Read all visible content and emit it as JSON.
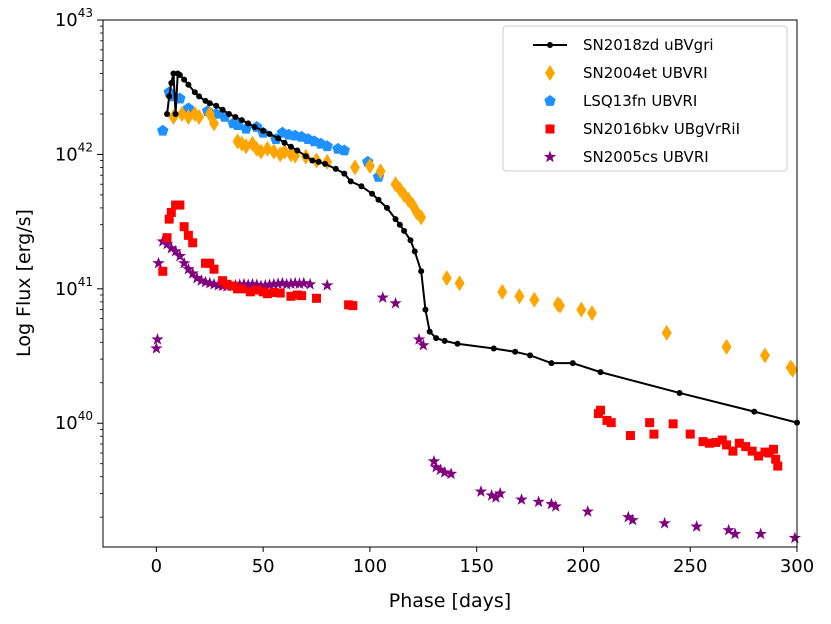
{
  "chart_data": {
    "type": "scatter",
    "title": "",
    "xlabel": "Phase [days]",
    "ylabel": "Log Flux [erg/s]",
    "xlim": [
      -25,
      300
    ],
    "ylim": [
      1.2e+39,
      1e+43
    ],
    "yscale": "log",
    "x_ticks": [
      0,
      50,
      100,
      150,
      200,
      250,
      300
    ],
    "y_ticks": [
      {
        "value": 1e+40,
        "base": "10",
        "exp": "40"
      },
      {
        "value": 1e+41,
        "base": "10",
        "exp": "41"
      },
      {
        "value": 1e+42,
        "base": "10",
        "exp": "42"
      },
      {
        "value": 1e+43,
        "base": "10",
        "exp": "43"
      }
    ],
    "legend_position": "top-right",
    "series": [
      {
        "name": "SN2018zd uBVgri",
        "color": "#000000",
        "marker": "dot-line",
        "points": [
          [
            5,
            2e+42
          ],
          [
            6,
            2.7e+42
          ],
          [
            7,
            3.4e+42
          ],
          [
            8,
            4e+42
          ],
          [
            9,
            2e+42
          ],
          [
            10,
            4e+42
          ],
          [
            11,
            3.9e+42
          ],
          [
            13,
            3.6e+42
          ],
          [
            15,
            3.3e+42
          ],
          [
            18,
            2.9e+42
          ],
          [
            20,
            2.7e+42
          ],
          [
            23,
            2.5e+42
          ],
          [
            25,
            2.4e+42
          ],
          [
            28,
            2.3e+42
          ],
          [
            31,
            2.15e+42
          ],
          [
            34,
            2e+42
          ],
          [
            37,
            1.9e+42
          ],
          [
            40,
            1.8e+42
          ],
          [
            43,
            1.7e+42
          ],
          [
            46,
            1.6e+42
          ],
          [
            50,
            1.5e+42
          ],
          [
            53,
            1.42e+42
          ],
          [
            57,
            1.32e+42
          ],
          [
            60,
            1.22e+42
          ],
          [
            63,
            1.14e+42
          ],
          [
            66,
            1.07e+42
          ],
          [
            70,
            9.7e+41
          ],
          [
            73,
            9e+41
          ],
          [
            76,
            8.8e+41
          ],
          [
            79,
            8.5e+41
          ],
          [
            84,
            7.8e+41
          ],
          [
            88,
            7.2e+41
          ],
          [
            91,
            6.3e+41
          ],
          [
            96,
            5.8e+41
          ],
          [
            101,
            5.1e+41
          ],
          [
            104,
            4.6e+41
          ],
          [
            108,
            4e+41
          ],
          [
            112,
            3.3e+41
          ],
          [
            114,
            3e+41
          ],
          [
            116,
            2.7e+41
          ],
          [
            119,
            2.3e+41
          ],
          [
            121,
            1.9e+41
          ],
          [
            124,
            1.35e+41
          ],
          [
            126,
            7e+40
          ],
          [
            128,
            4.8e+40
          ],
          [
            131,
            4.3e+40
          ],
          [
            135,
            4.1e+40
          ],
          [
            141,
            3.9e+40
          ],
          [
            158,
            3.6e+40
          ],
          [
            168,
            3.4e+40
          ],
          [
            175,
            3.2e+40
          ],
          [
            185,
            2.8e+40
          ],
          [
            195,
            2.8e+40
          ],
          [
            208,
            2.4e+40
          ],
          [
            245,
            1.68e+40
          ],
          [
            280,
            1.22e+40
          ],
          [
            300,
            1.01e+40
          ]
        ]
      },
      {
        "name": "SN2004et UBVRI",
        "color": "#ffa500",
        "marker": "diamond",
        "points": [
          [
            8,
            1.9e+42
          ],
          [
            12,
            2e+42
          ],
          [
            15,
            1.9e+42
          ],
          [
            18,
            2e+42
          ],
          [
            20,
            1.9e+42
          ],
          [
            25,
            2e+42
          ],
          [
            27,
            1.7e+42
          ],
          [
            38,
            1.25e+42
          ],
          [
            40,
            1.2e+42
          ],
          [
            42,
            1.15e+42
          ],
          [
            45,
            1.2e+42
          ],
          [
            47,
            1.1e+42
          ],
          [
            49,
            1.05e+42
          ],
          [
            52,
            1.1e+42
          ],
          [
            55,
            1.05e+42
          ],
          [
            58,
            1e+42
          ],
          [
            60,
            1.05e+42
          ],
          [
            63,
            1e+42
          ],
          [
            65,
            9.8e+41
          ],
          [
            70,
            9.6e+41
          ],
          [
            75,
            9e+41
          ],
          [
            80,
            8.8e+41
          ],
          [
            93,
            8e+41
          ],
          [
            100,
            8.2e+41
          ],
          [
            105,
            7.5e+41
          ],
          [
            112,
            6e+41
          ],
          [
            114,
            5.5e+41
          ],
          [
            116,
            5e+41
          ],
          [
            118,
            4.6e+41
          ],
          [
            120,
            4.2e+41
          ],
          [
            122,
            3.7e+41
          ],
          [
            124,
            3.4e+41
          ],
          [
            136,
            1.2e+41
          ],
          [
            142,
            1.1e+41
          ],
          [
            162,
            9.5e+40
          ],
          [
            170,
            8.8e+40
          ],
          [
            177,
            8.3e+40
          ],
          [
            188,
            7.7e+40
          ],
          [
            189,
            7.5e+40
          ],
          [
            199,
            7e+40
          ],
          [
            204,
            6.6e+40
          ],
          [
            239,
            4.7e+40
          ],
          [
            267,
            3.7e+40
          ],
          [
            285,
            3.2e+40
          ],
          [
            297,
            2.6e+40
          ],
          [
            298,
            2.5e+40
          ]
        ]
      },
      {
        "name": "LSQ13fn UBVRI",
        "color": "#1e90ff",
        "marker": "pentagon",
        "points": [
          [
            3,
            1.5e+42
          ],
          [
            6,
            2.9e+42
          ],
          [
            8,
            2.7e+42
          ],
          [
            11,
            2.6e+42
          ],
          [
            15,
            2.2e+42
          ],
          [
            24,
            2.1e+42
          ],
          [
            28,
            2e+42
          ],
          [
            32,
            1.9e+42
          ],
          [
            36,
            1.7e+42
          ],
          [
            38,
            1.65e+42
          ],
          [
            42,
            1.55e+42
          ],
          [
            47,
            1.6e+42
          ],
          [
            50,
            1.45e+42
          ],
          [
            56,
            1.3e+42
          ],
          [
            59,
            1.45e+42
          ],
          [
            62,
            1.4e+42
          ],
          [
            65,
            1.38e+42
          ],
          [
            68,
            1.35e+42
          ],
          [
            71,
            1.3e+42
          ],
          [
            74,
            1.25e+42
          ],
          [
            77,
            1.2e+42
          ],
          [
            80,
            1.15e+42
          ],
          [
            85,
            1.1e+42
          ],
          [
            88,
            1.07e+42
          ],
          [
            99,
            8.8e+41
          ],
          [
            104,
            6.8e+41
          ]
        ]
      },
      {
        "name": "SN2016bkv UBgVrRiI",
        "color": "#ff0000",
        "marker": "square",
        "points": [
          [
            3,
            1.35e+41
          ],
          [
            5,
            2.4e+41
          ],
          [
            6,
            3.3e+41
          ],
          [
            7,
            3.7e+41
          ],
          [
            9,
            4.2e+41
          ],
          [
            11,
            4.2e+41
          ],
          [
            13,
            2.9e+41
          ],
          [
            15,
            2.5e+41
          ],
          [
            17,
            2.2e+41
          ],
          [
            23,
            1.55e+41
          ],
          [
            25,
            1.55e+41
          ],
          [
            27,
            1.4e+41
          ],
          [
            31,
            1.15e+41
          ],
          [
            33,
            1.08e+41
          ],
          [
            36,
            1.05e+41
          ],
          [
            38,
            1e+41
          ],
          [
            40,
            1e+41
          ],
          [
            44,
            9.5e+40
          ],
          [
            47,
            9.8e+40
          ],
          [
            50,
            9.5e+40
          ],
          [
            52,
            9.2e+40
          ],
          [
            55,
            9.4e+40
          ],
          [
            58,
            9.3e+40
          ],
          [
            63,
            8.8e+40
          ],
          [
            66,
            9e+40
          ],
          [
            68,
            8.9e+40
          ],
          [
            75,
            8.5e+40
          ],
          [
            90,
            7.6e+40
          ],
          [
            92,
            7.5e+40
          ],
          [
            207,
            1.18e+40
          ],
          [
            208,
            1.25e+40
          ],
          [
            211,
            1.05e+40
          ],
          [
            213,
            1.01e+40
          ],
          [
            222,
            8.1e+39
          ],
          [
            231,
            1.01e+40
          ],
          [
            233,
            8.3e+39
          ],
          [
            242,
            9.9e+39
          ],
          [
            250,
            8.3e+39
          ],
          [
            256,
            7.3e+39
          ],
          [
            259,
            7.1e+39
          ],
          [
            262,
            7.2e+39
          ],
          [
            265,
            7.5e+39
          ],
          [
            267,
            6.9e+39
          ],
          [
            270,
            6.2e+39
          ],
          [
            273,
            7.1e+39
          ],
          [
            276,
            6.7e+39
          ],
          [
            279,
            6.2e+39
          ],
          [
            282,
            5.7e+39
          ],
          [
            285,
            6.1e+39
          ],
          [
            287,
            6e+39
          ],
          [
            289,
            6.4e+39
          ],
          [
            290,
            5.4e+39
          ],
          [
            291,
            4.8e+39
          ]
        ]
      },
      {
        "name": "SN2005cs UBVRI",
        "color": "#800080",
        "marker": "star",
        "points": [
          [
            0,
            3.6e+40
          ],
          [
            0.5,
            4.2e+40
          ],
          [
            1,
            1.55e+41
          ],
          [
            3,
            2.25e+41
          ],
          [
            5,
            2.15e+41
          ],
          [
            7,
            2e+41
          ],
          [
            9,
            1.9e+41
          ],
          [
            11,
            1.75e+41
          ],
          [
            13,
            1.55e+41
          ],
          [
            15,
            1.4e+41
          ],
          [
            17,
            1.3e+41
          ],
          [
            19,
            1.2e+41
          ],
          [
            21,
            1.15e+41
          ],
          [
            23,
            1.12e+41
          ],
          [
            25,
            1.1e+41
          ],
          [
            27,
            1.08e+41
          ],
          [
            29,
            1.06e+41
          ],
          [
            31,
            1.05e+41
          ],
          [
            33,
            1.04e+41
          ],
          [
            35,
            1.05e+41
          ],
          [
            37,
            1.06e+41
          ],
          [
            39,
            1.07e+41
          ],
          [
            41,
            1.08e+41
          ],
          [
            43,
            1.07e+41
          ],
          [
            45,
            1.08e+41
          ],
          [
            47,
            1.07e+41
          ],
          [
            49,
            1.05e+41
          ],
          [
            51,
            1.06e+41
          ],
          [
            53,
            1.07e+41
          ],
          [
            55,
            1.08e+41
          ],
          [
            57,
            1.09e+41
          ],
          [
            59,
            1.1e+41
          ],
          [
            61,
            1.08e+41
          ],
          [
            63,
            1.09e+41
          ],
          [
            65,
            1.1e+41
          ],
          [
            67,
            1.09e+41
          ],
          [
            69,
            1.1e+41
          ],
          [
            72,
            1.08e+41
          ],
          [
            80,
            1.06e+41
          ],
          [
            106,
            8.6e+40
          ],
          [
            112,
            7.8e+40
          ],
          [
            123,
            4.2e+40
          ],
          [
            125,
            3.8e+40
          ],
          [
            130,
            5.2e+39
          ],
          [
            131,
            4.7e+39
          ],
          [
            133,
            4.5e+39
          ],
          [
            135,
            4.3e+39
          ],
          [
            138,
            4.2e+39
          ],
          [
            152,
            3.1e+39
          ],
          [
            157,
            2.9e+39
          ],
          [
            159,
            2.8e+39
          ],
          [
            161,
            3e+39
          ],
          [
            171,
            2.7e+39
          ],
          [
            179,
            2.6e+39
          ],
          [
            185,
            2.5e+39
          ],
          [
            187,
            2.4e+39
          ],
          [
            202,
            2.2e+39
          ],
          [
            221,
            2e+39
          ],
          [
            223,
            1.9e+39
          ],
          [
            238,
            1.8e+39
          ],
          [
            253,
            1.7e+39
          ],
          [
            268,
            1.6e+39
          ],
          [
            271,
            1.5e+39
          ],
          [
            283,
            1.5e+39
          ],
          [
            299,
            1.4e+39
          ]
        ]
      }
    ]
  }
}
